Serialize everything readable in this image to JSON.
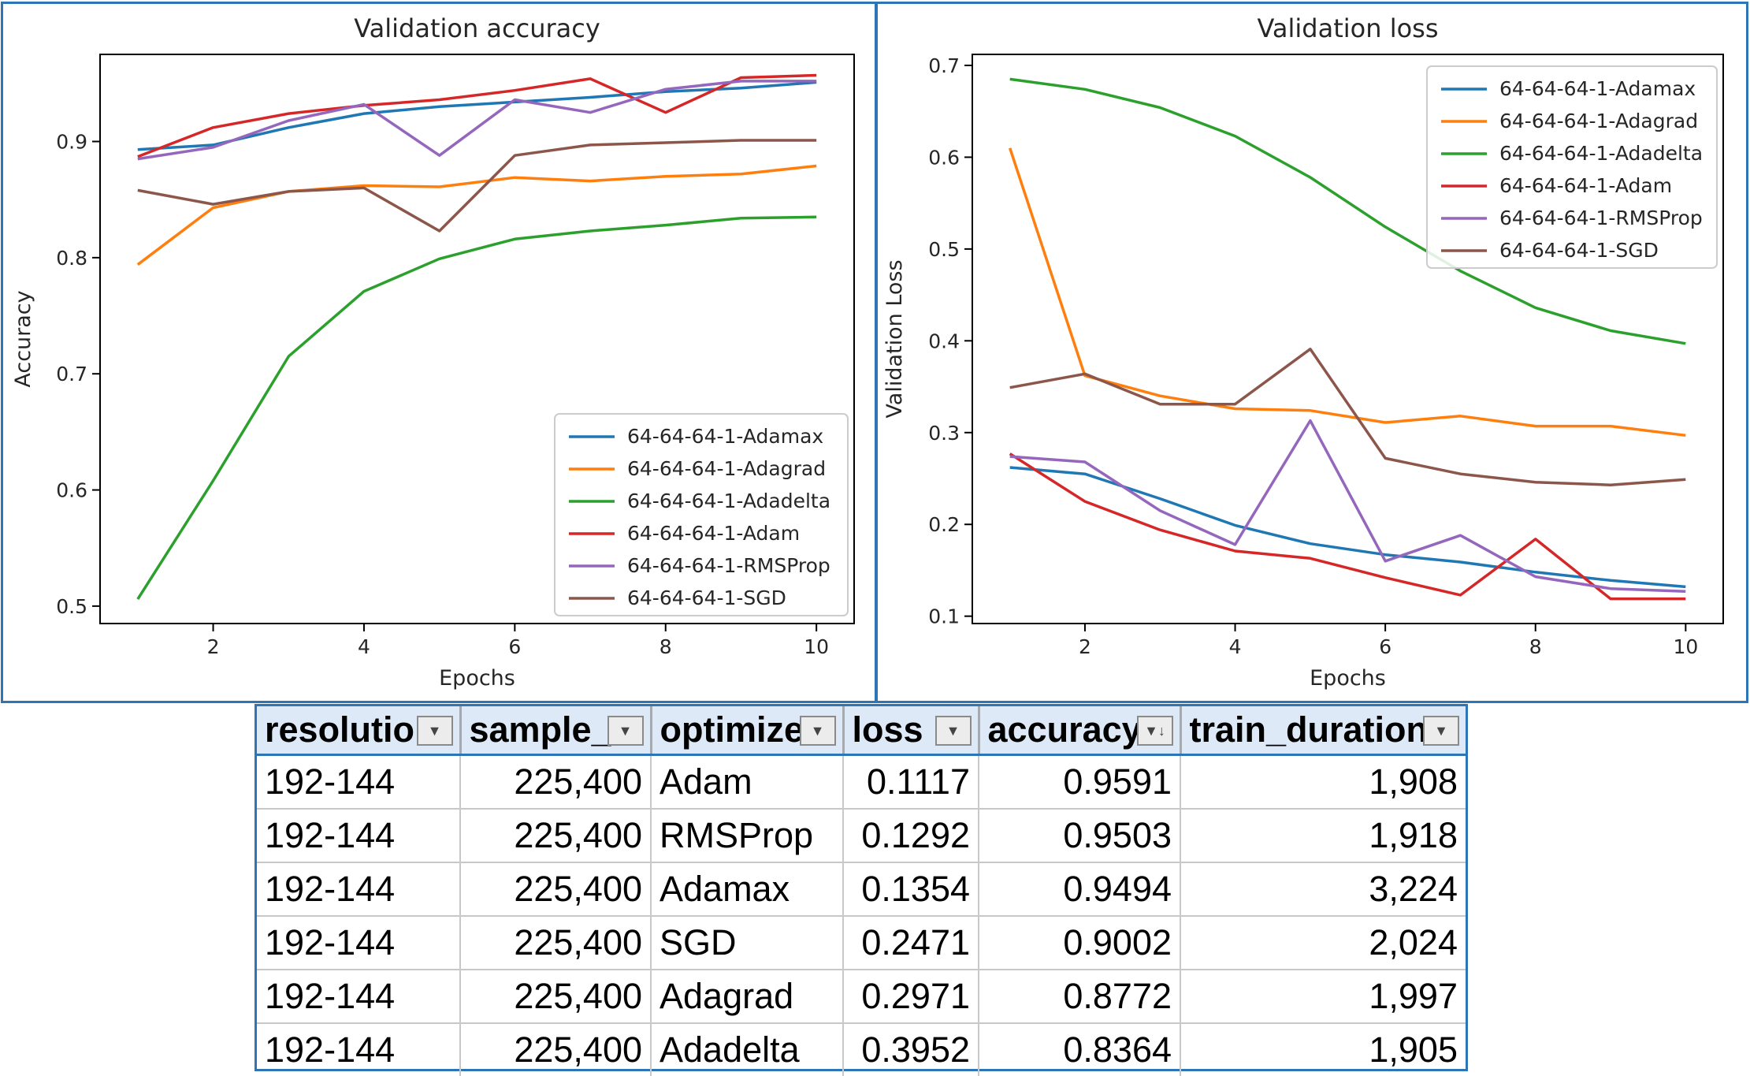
{
  "chart_data": [
    {
      "type": "line",
      "title": "Validation accuracy",
      "xlabel": "Epochs",
      "ylabel": "Accuracy",
      "xlim": [
        0.5,
        10.5
      ],
      "ylim": [
        0.485,
        0.975
      ],
      "xticks": [
        2,
        4,
        6,
        8,
        10
      ],
      "yticks": [
        0.5,
        0.6,
        0.7,
        0.8,
        0.9
      ],
      "ytick_labels": [
        "0.5",
        "0.6",
        "0.7",
        "0.8",
        "0.9"
      ],
      "legend": "bottom-right",
      "x": [
        1,
        2,
        3,
        4,
        5,
        6,
        7,
        8,
        9,
        10
      ],
      "series": [
        {
          "name": "64-64-64-1-Adamax",
          "color": "#1f77b4",
          "values": [
            0.893,
            0.897,
            0.912,
            0.924,
            0.93,
            0.934,
            0.938,
            0.943,
            0.946,
            0.951
          ]
        },
        {
          "name": "64-64-64-1-Adagrad",
          "color": "#ff7f0e",
          "values": [
            0.794,
            0.843,
            0.857,
            0.862,
            0.861,
            0.869,
            0.866,
            0.87,
            0.872,
            0.879
          ]
        },
        {
          "name": "64-64-64-1-Adadelta",
          "color": "#2ca02c",
          "values": [
            0.506,
            0.608,
            0.715,
            0.771,
            0.799,
            0.816,
            0.823,
            0.828,
            0.834,
            0.835
          ]
        },
        {
          "name": "64-64-64-1-Adam",
          "color": "#d62728",
          "values": [
            0.887,
            0.912,
            0.924,
            0.931,
            0.936,
            0.944,
            0.954,
            0.925,
            0.955,
            0.957
          ]
        },
        {
          "name": "64-64-64-1-RMSProp",
          "color": "#9467bd",
          "values": [
            0.885,
            0.895,
            0.918,
            0.932,
            0.888,
            0.936,
            0.925,
            0.945,
            0.952,
            0.952
          ]
        },
        {
          "name": "64-64-64-1-SGD",
          "color": "#8c564b",
          "values": [
            0.858,
            0.846,
            0.857,
            0.86,
            0.823,
            0.888,
            0.897,
            0.899,
            0.901,
            0.901
          ]
        }
      ]
    },
    {
      "type": "line",
      "title": "Validation loss",
      "xlabel": "Epochs",
      "ylabel": "Validation Loss",
      "xlim": [
        0.5,
        10.5
      ],
      "ylim": [
        0.092,
        0.712
      ],
      "xticks": [
        2,
        4,
        6,
        8,
        10
      ],
      "yticks": [
        0.1,
        0.2,
        0.3,
        0.4,
        0.5,
        0.6,
        0.7
      ],
      "ytick_labels": [
        "0.1",
        "0.2",
        "0.3",
        "0.4",
        "0.5",
        "0.6",
        "0.7"
      ],
      "legend": "top-right",
      "x": [
        1,
        2,
        3,
        4,
        5,
        6,
        7,
        8,
        9,
        10
      ],
      "series": [
        {
          "name": "64-64-64-1-Adamax",
          "color": "#1f77b4",
          "values": [
            0.262,
            0.255,
            0.228,
            0.199,
            0.179,
            0.167,
            0.159,
            0.148,
            0.139,
            0.132
          ]
        },
        {
          "name": "64-64-64-1-Adagrad",
          "color": "#ff7f0e",
          "values": [
            0.61,
            0.362,
            0.34,
            0.326,
            0.324,
            0.311,
            0.318,
            0.307,
            0.307,
            0.297
          ]
        },
        {
          "name": "64-64-64-1-Adadelta",
          "color": "#2ca02c",
          "values": [
            0.685,
            0.674,
            0.654,
            0.623,
            0.578,
            0.524,
            0.476,
            0.436,
            0.411,
            0.397
          ]
        },
        {
          "name": "64-64-64-1-Adam",
          "color": "#d62728",
          "values": [
            0.277,
            0.225,
            0.194,
            0.171,
            0.163,
            0.142,
            0.123,
            0.184,
            0.119,
            0.119
          ]
        },
        {
          "name": "64-64-64-1-RMSProp",
          "color": "#9467bd",
          "values": [
            0.274,
            0.268,
            0.215,
            0.178,
            0.313,
            0.16,
            0.188,
            0.143,
            0.13,
            0.127
          ]
        },
        {
          "name": "64-64-64-1-SGD",
          "color": "#8c564b",
          "values": [
            0.349,
            0.364,
            0.331,
            0.331,
            0.391,
            0.272,
            0.255,
            0.246,
            0.243,
            0.249
          ]
        }
      ]
    }
  ],
  "table": {
    "headers": [
      "resolution",
      "sample_",
      "optimize",
      "loss",
      "accuracy",
      "train_duration"
    ],
    "align": [
      "txt",
      "num",
      "txt",
      "num",
      "num",
      "num"
    ],
    "rows": [
      [
        "192-144",
        "225,400",
        "Adam",
        "0.1117",
        "0.9591",
        "1,908"
      ],
      [
        "192-144",
        "225,400",
        "RMSProp",
        "0.1292",
        "0.9503",
        "1,918"
      ],
      [
        "192-144",
        "225,400",
        "Adamax",
        "0.1354",
        "0.9494",
        "3,224"
      ],
      [
        "192-144",
        "225,400",
        "SGD",
        "0.2471",
        "0.9002",
        "2,024"
      ],
      [
        "192-144",
        "225,400",
        "Adagrad",
        "0.2971",
        "0.8772",
        "1,997"
      ],
      [
        "192-144",
        "225,400",
        "Adadelta",
        "0.3952",
        "0.8364",
        "1,905"
      ]
    ],
    "filter_glyphs": [
      "▼",
      "▼",
      "▼",
      "▼",
      "▼↓",
      "▼"
    ]
  }
}
